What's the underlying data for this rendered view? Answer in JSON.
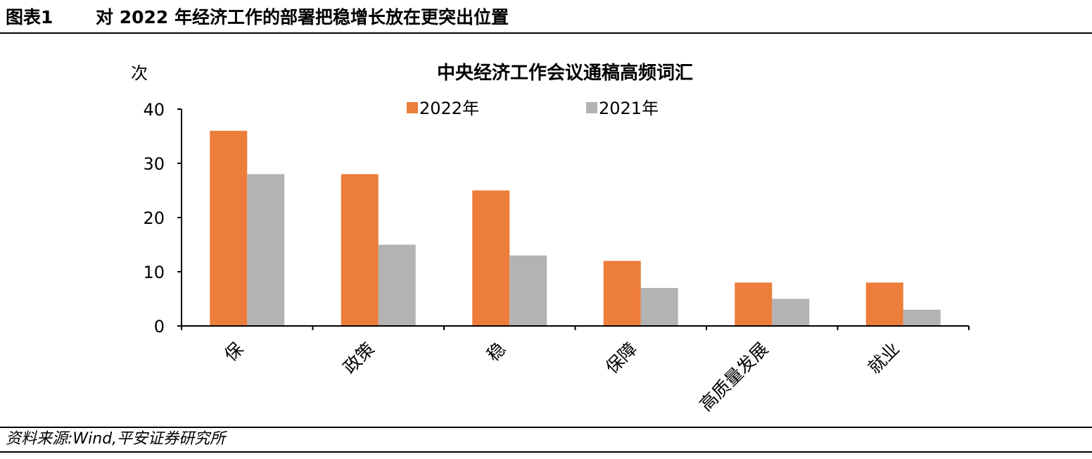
{
  "header": {
    "figure_label": "图表1",
    "figure_title": "对 2022 年经济工作的部署把稳增长放在更突出位置"
  },
  "source_note": "资料来源:Wind,平安证券研究所",
  "colors": {
    "series_2022": "#ED7D3B",
    "series_2021": "#B3B3B3",
    "axis": "#000000"
  },
  "chart_data": {
    "type": "bar",
    "title": "中央经济工作会议通稿高频词汇",
    "ylabel": "次",
    "xlabel": "",
    "ylim": [
      0,
      40
    ],
    "yticks": [
      0,
      10,
      20,
      30,
      40
    ],
    "grid": false,
    "legend_position": "top-center",
    "categories": [
      "保",
      "政策",
      "稳",
      "保障",
      "高质量发展",
      "就业"
    ],
    "series": [
      {
        "name": "2022年",
        "values": [
          36,
          28,
          25,
          12,
          8,
          8
        ]
      },
      {
        "name": "2021年",
        "values": [
          28,
          15,
          13,
          7,
          5,
          3
        ]
      }
    ]
  }
}
